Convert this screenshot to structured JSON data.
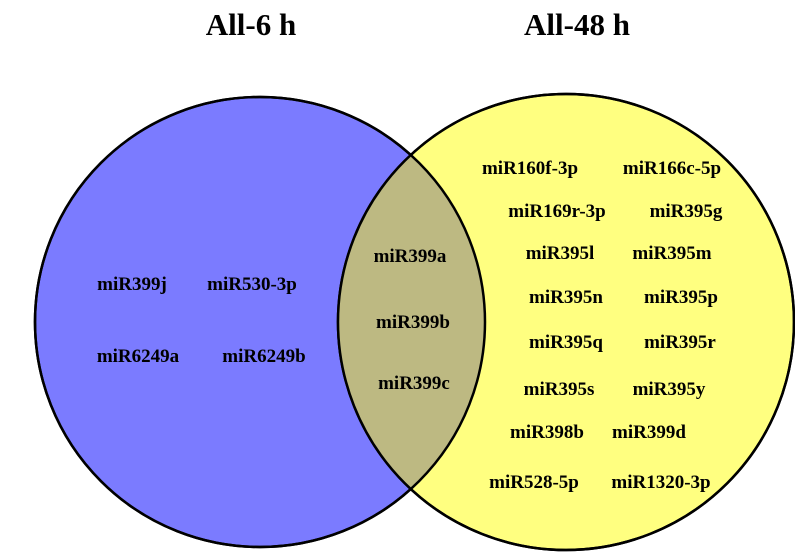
{
  "sets": {
    "left": {
      "title": "All-6 h",
      "color": "#7b7bff",
      "items": [
        "miR399j",
        "miR530-3p",
        "miR6249a",
        "miR6249b"
      ]
    },
    "right": {
      "title": "All-48 h",
      "color": "#ffff80",
      "items": [
        "miR160f-3p",
        "miR166c-5p",
        "miR169r-3p",
        "miR395g",
        "miR395l",
        "miR395m",
        "miR395n",
        "miR395p",
        "miR395q",
        "miR395r",
        "miR395s",
        "miR395y",
        "miR398b",
        "miR399d",
        "miR528-5p",
        "miR1320-3p"
      ]
    },
    "overlap": {
      "color": "#bdb982",
      "items": [
        "miR399a",
        "miR399b",
        "miR399c"
      ]
    }
  }
}
